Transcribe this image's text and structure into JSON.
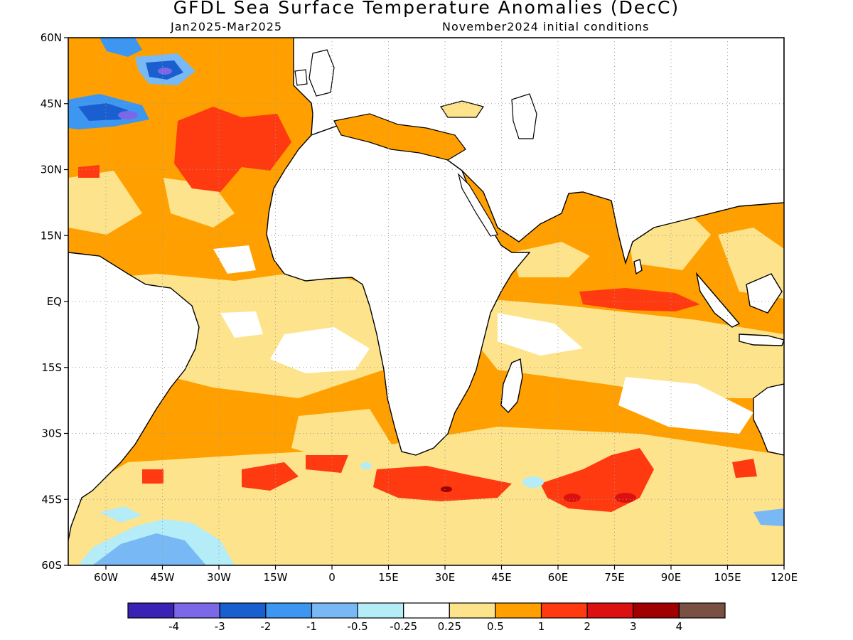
{
  "title": "GFDL Sea Surface Temperature Anomalies (DecC)",
  "subtitle_period": "Jan2025-Mar2025",
  "subtitle_init": "November2024 initial conditions",
  "map_extent": {
    "lon_min": -70,
    "lon_max": 120,
    "lat_min": -60,
    "lat_max": 60
  },
  "y_axis": {
    "ticks": [
      60,
      45,
      30,
      15,
      0,
      -15,
      -30,
      -45,
      -60
    ],
    "labels": [
      "60N",
      "45N",
      "30N",
      "15N",
      "EQ",
      "15S",
      "30S",
      "45S",
      "60S"
    ]
  },
  "x_axis": {
    "ticks": [
      -60,
      -45,
      -30,
      -15,
      0,
      15,
      30,
      45,
      60,
      75,
      90,
      105,
      120
    ],
    "labels": [
      "60W",
      "45W",
      "30W",
      "15W",
      "0",
      "15E",
      "30E",
      "45E",
      "60E",
      "75E",
      "90E",
      "105E",
      "120E"
    ]
  },
  "colorbar": {
    "colors": [
      "#3a22b4",
      "#7b68e6",
      "#1a5fd0",
      "#3d96f0",
      "#78b8f5",
      "#b4ecf8",
      "#ffffff",
      "#fde48c",
      "#ffa000",
      "#ff3a10",
      "#dc1010",
      "#a00000",
      "#7a5044"
    ],
    "labels": [
      "-4",
      "-3",
      "-2",
      "-1",
      "-0.5",
      "-0.25",
      "0.25",
      "0.5",
      "1",
      "2",
      "3",
      "4"
    ]
  }
}
